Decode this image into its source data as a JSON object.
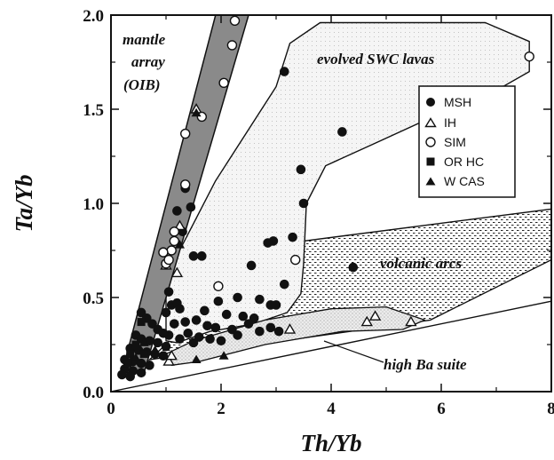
{
  "chart_data": {
    "type": "scatter",
    "xlabel": "Th/Yb",
    "ylabel": "Ta/Yb",
    "xlim": [
      0,
      8
    ],
    "ylim": [
      0,
      2
    ],
    "x_ticks": [
      "0",
      "2",
      "4",
      "6",
      "8"
    ],
    "y_ticks": [
      "0.0",
      "0.5",
      "1.0",
      "1.5",
      "2.0"
    ],
    "grid": false,
    "legend_position": "upper-right",
    "region_labels": {
      "mantle_line1": "mantle",
      "mantle_line2": "array",
      "mantle_line3": "(OIB)",
      "evolved": "evolved SWC lavas",
      "arcs": "volcanic arcs",
      "highba": "high Ba suite"
    },
    "regions": {
      "mantle_array": [
        [
          0.2,
          0.1
        ],
        [
          0.6,
          0.1
        ],
        [
          2.5,
          2.0
        ],
        [
          1.9,
          2.0
        ]
      ],
      "volcanic_arcs": [
        [
          0.7,
          0.17
        ],
        [
          2.1,
          0.55
        ],
        [
          3.5,
          0.8
        ],
        [
          8.0,
          0.97
        ],
        [
          8.0,
          0.7
        ],
        [
          5.8,
          0.38
        ]
      ],
      "evolved_swc": [
        [
          1.0,
          0.27
        ],
        [
          1.0,
          0.62
        ],
        [
          1.3,
          0.78
        ],
        [
          1.9,
          1.12
        ],
        [
          3.0,
          1.62
        ],
        [
          3.25,
          1.85
        ],
        [
          3.8,
          1.96
        ],
        [
          5.3,
          1.96
        ],
        [
          6.8,
          1.96
        ],
        [
          7.6,
          1.86
        ],
        [
          7.6,
          1.7
        ],
        [
          7.0,
          1.6
        ],
        [
          6.0,
          1.48
        ],
        [
          4.8,
          1.32
        ],
        [
          3.9,
          1.2
        ],
        [
          3.55,
          1.0
        ],
        [
          3.5,
          0.68
        ],
        [
          3.45,
          0.52
        ],
        [
          3.2,
          0.42
        ],
        [
          2.6,
          0.36
        ],
        [
          1.8,
          0.32
        ],
        [
          1.2,
          0.26
        ]
      ],
      "high_ba": [
        [
          1.1,
          0.14
        ],
        [
          1.0,
          0.2
        ],
        [
          1.5,
          0.27
        ],
        [
          2.8,
          0.38
        ],
        [
          4.0,
          0.44
        ],
        [
          5.0,
          0.45
        ],
        [
          5.7,
          0.38
        ],
        [
          5.3,
          0.33
        ],
        [
          4.2,
          0.32
        ],
        [
          2.8,
          0.25
        ],
        [
          1.6,
          0.16
        ]
      ],
      "boundary": [
        [
          0.0,
          0.0
        ],
        [
          8.0,
          0.48
        ]
      ]
    },
    "series": [
      {
        "name": "MSH",
        "marker": "filled-circle",
        "points": [
          [
            3.15,
            1.7
          ],
          [
            4.2,
            1.38
          ],
          [
            3.45,
            1.18
          ],
          [
            3.5,
            1.0
          ],
          [
            3.3,
            0.82
          ],
          [
            2.95,
            0.8
          ],
          [
            2.85,
            0.79
          ],
          [
            1.35,
            1.08
          ],
          [
            1.5,
            0.72
          ],
          [
            1.65,
            0.72
          ],
          [
            2.55,
            0.67
          ],
          [
            3.15,
            0.57
          ],
          [
            4.4,
            0.66
          ],
          [
            1.7,
            0.43
          ],
          [
            1.95,
            0.48
          ],
          [
            2.3,
            0.5
          ],
          [
            2.7,
            0.49
          ],
          [
            2.9,
            0.46
          ],
          [
            3.0,
            0.46
          ],
          [
            2.1,
            0.41
          ],
          [
            2.4,
            0.4
          ],
          [
            2.6,
            0.39
          ],
          [
            1.1,
            0.46
          ],
          [
            1.2,
            0.47
          ],
          [
            1.25,
            0.44
          ],
          [
            1.35,
            0.37
          ],
          [
            1.55,
            0.38
          ],
          [
            1.75,
            0.35
          ],
          [
            1.9,
            0.34
          ],
          [
            2.2,
            0.33
          ],
          [
            2.5,
            0.36
          ],
          [
            2.7,
            0.32
          ],
          [
            2.9,
            0.34
          ],
          [
            3.05,
            0.32
          ],
          [
            1.0,
            0.42
          ],
          [
            1.15,
            0.36
          ],
          [
            1.4,
            0.31
          ],
          [
            1.6,
            0.29
          ],
          [
            1.8,
            0.28
          ],
          [
            2.0,
            0.27
          ],
          [
            2.3,
            0.3
          ],
          [
            1.05,
            0.3
          ],
          [
            1.25,
            0.28
          ],
          [
            1.5,
            0.26
          ],
          [
            0.55,
            0.42
          ],
          [
            0.65,
            0.39
          ],
          [
            0.75,
            0.36
          ],
          [
            0.85,
            0.33
          ],
          [
            0.95,
            0.31
          ],
          [
            0.45,
            0.3
          ],
          [
            0.55,
            0.28
          ],
          [
            0.7,
            0.27
          ],
          [
            0.85,
            0.26
          ],
          [
            1.0,
            0.24
          ],
          [
            0.35,
            0.23
          ],
          [
            0.5,
            0.22
          ],
          [
            0.65,
            0.21
          ],
          [
            0.8,
            0.2
          ],
          [
            0.95,
            0.19
          ],
          [
            0.25,
            0.17
          ],
          [
            0.4,
            0.16
          ],
          [
            0.55,
            0.15
          ],
          [
            0.7,
            0.14
          ],
          [
            0.25,
            0.12
          ],
          [
            0.4,
            0.11
          ],
          [
            0.55,
            0.1
          ],
          [
            0.2,
            0.09
          ],
          [
            0.35,
            0.08
          ],
          [
            1.3,
            0.85
          ],
          [
            1.45,
            0.98
          ],
          [
            1.2,
            0.96
          ],
          [
            1.05,
            0.53
          ]
        ]
      },
      {
        "name": "IH",
        "marker": "open-triangle",
        "points": [
          [
            1.55,
            1.5
          ],
          [
            1.25,
            0.88
          ],
          [
            1.2,
            0.63
          ],
          [
            1.0,
            0.67
          ],
          [
            3.25,
            0.33
          ],
          [
            4.8,
            0.4
          ],
          [
            4.65,
            0.37
          ],
          [
            5.45,
            0.37
          ],
          [
            1.05,
            0.16
          ],
          [
            1.1,
            0.19
          ]
        ]
      },
      {
        "name": "SIM",
        "marker": "open-circle",
        "points": [
          [
            2.25,
            1.97
          ],
          [
            2.2,
            1.84
          ],
          [
            2.05,
            1.64
          ],
          [
            1.65,
            1.46
          ],
          [
            1.35,
            1.37
          ],
          [
            1.35,
            1.1
          ],
          [
            1.15,
            0.85
          ],
          [
            1.15,
            0.8
          ],
          [
            1.1,
            0.75
          ],
          [
            0.95,
            0.74
          ],
          [
            1.0,
            0.68
          ],
          [
            1.05,
            0.7
          ],
          [
            1.95,
            0.56
          ],
          [
            3.35,
            0.7
          ],
          [
            7.6,
            1.78
          ]
        ]
      },
      {
        "name": "OR HC",
        "marker": "filled-square",
        "points": [
          [
            0.55,
            0.37
          ],
          [
            0.45,
            0.25
          ],
          [
            0.35,
            0.2
          ],
          [
            0.3,
            0.15
          ],
          [
            0.6,
            0.2
          ]
        ]
      },
      {
        "name": "W CAS",
        "marker": "filled-triangle",
        "points": [
          [
            1.55,
            1.48
          ],
          [
            1.25,
            0.78
          ],
          [
            1.55,
            0.17
          ],
          [
            2.05,
            0.19
          ],
          [
            0.6,
            0.26
          ],
          [
            0.8,
            0.22
          ],
          [
            0.45,
            0.18
          ]
        ]
      }
    ]
  }
}
